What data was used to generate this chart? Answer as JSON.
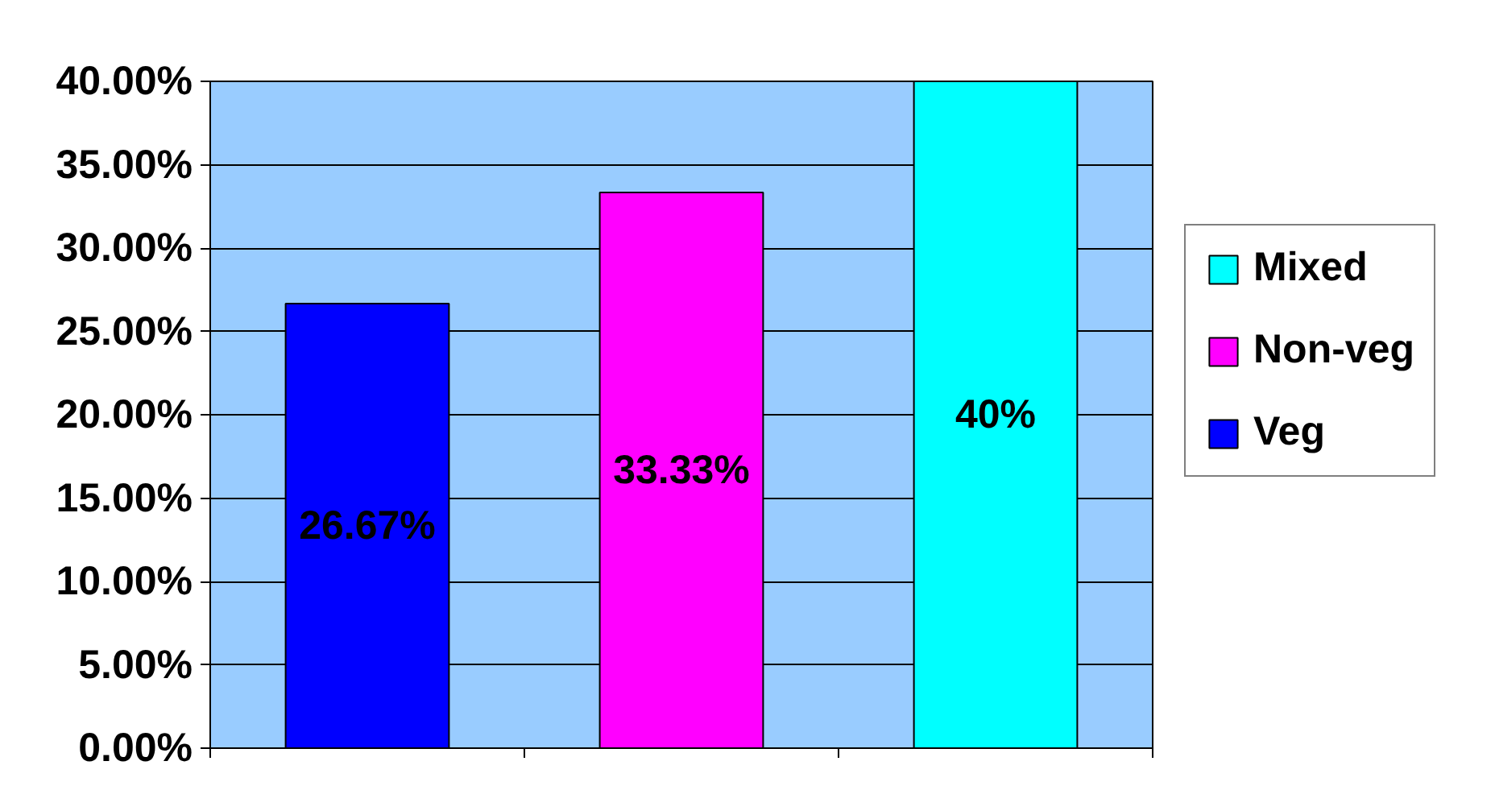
{
  "chart_data": {
    "type": "bar",
    "categories": [
      null,
      null,
      null
    ],
    "series": [
      {
        "name": "Veg",
        "color": "#0000ff",
        "values": [
          26.67,
          null,
          null
        ],
        "value_labels": [
          "26.67%",
          null,
          null
        ]
      },
      {
        "name": "Non-veg",
        "color": "#ff00ff",
        "values": [
          null,
          33.33,
          null
        ],
        "value_labels": [
          null,
          "33.33%",
          null
        ]
      },
      {
        "name": "Mixed",
        "color": "#00ffff",
        "values": [
          null,
          null,
          40
        ],
        "value_labels": [
          null,
          null,
          "40%"
        ]
      }
    ],
    "ylim": [
      0,
      40
    ],
    "yticks": [
      {
        "value": 0,
        "label": "0.00%"
      },
      {
        "value": 5,
        "label": "5.00%"
      },
      {
        "value": 10,
        "label": "10.00%"
      },
      {
        "value": 15,
        "label": "15.00%"
      },
      {
        "value": 20,
        "label": "20.00%"
      },
      {
        "value": 25,
        "label": "25.00%"
      },
      {
        "value": 30,
        "label": "30.00%"
      },
      {
        "value": 35,
        "label": "35.00%"
      },
      {
        "value": 40,
        "label": "40.00%"
      }
    ],
    "grid": "y",
    "legend": "right"
  }
}
